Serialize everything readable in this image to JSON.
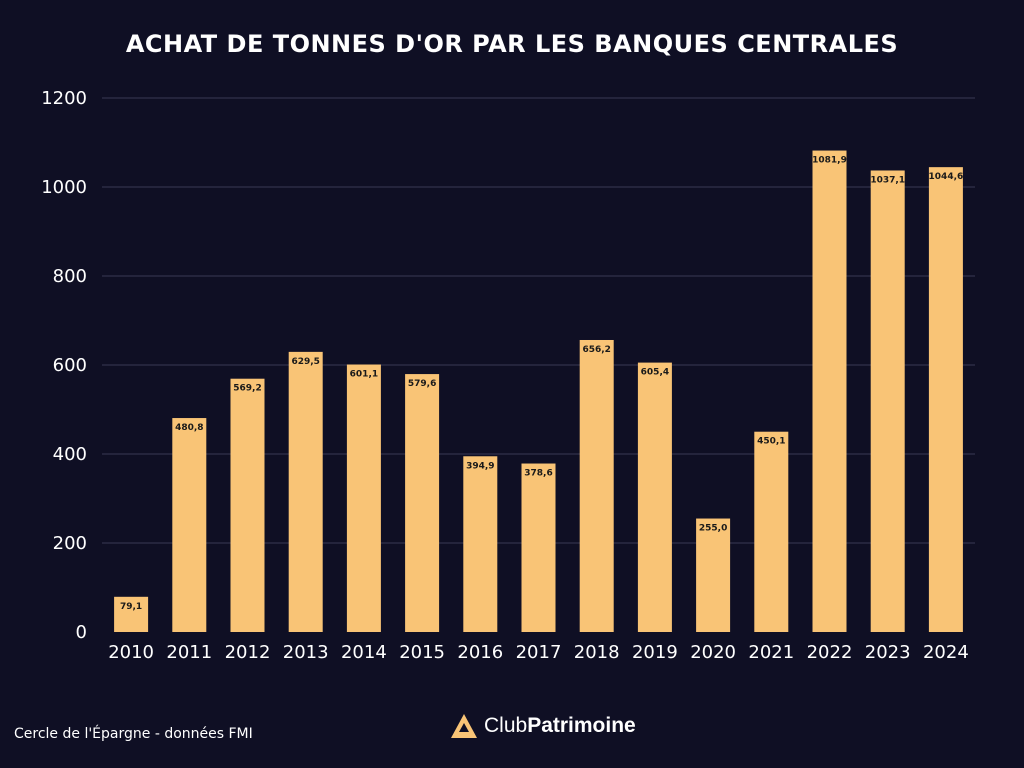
{
  "colors": {
    "background": "#0f0f24",
    "bar": "#f9c476",
    "grid": "#3a3a55",
    "text": "#ffffff",
    "label": "#1a1a1a"
  },
  "chart_data": {
    "type": "bar",
    "title": "ACHAT DE TONNES D'OR PAR LES BANQUES CENTRALES",
    "xlabel": "",
    "ylabel": "",
    "ylim": [
      0,
      1200
    ],
    "yticks": [
      "0",
      "200",
      "400",
      "600",
      "800",
      "1000",
      "1200"
    ],
    "grid": true,
    "categories": [
      "2010",
      "2011",
      "2012",
      "2013",
      "2014",
      "2015",
      "2016",
      "2017",
      "2018",
      "2019",
      "2020",
      "2021",
      "2022",
      "2023",
      "2024"
    ],
    "values": [
      79.1,
      480.8,
      569.2,
      629.5,
      601.1,
      579.6,
      394.9,
      378.6,
      656.2,
      605.4,
      255.0,
      450.1,
      1081.9,
      1037.1,
      1044.6
    ],
    "value_labels": [
      "79,1",
      "480,8",
      "569,2",
      "629,5",
      "601,1",
      "579,6",
      "394,9",
      "378,6",
      "656,2",
      "605,4",
      "255,0",
      "450,1",
      "1081,9",
      "1037,1",
      "1044,6"
    ]
  },
  "footer": {
    "source": "Cercle de l'Épargne - données FMI",
    "brand_light": "Club",
    "brand_bold": "Patrimoine",
    "brand_icon": "triangle-logo-icon"
  }
}
